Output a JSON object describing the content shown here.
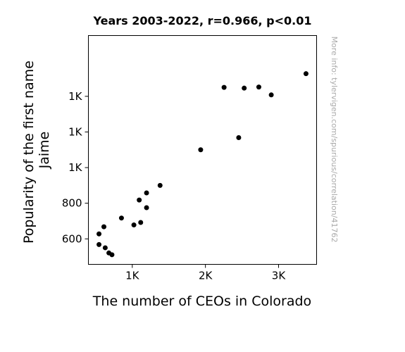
{
  "chart_data": {
    "type": "scatter",
    "title": "Years 2003-2022, r=0.966, p<0.01",
    "xlabel": "The number of CEOs in Colorado",
    "ylabel_lines": [
      "Popularity of the first name",
      "Jaime"
    ],
    "watermark": "More info: tylervigen.com/spurious/correlation/41762",
    "xlim": [
      400,
      3520
    ],
    "ylim": [
      457,
      1741
    ],
    "x_ticks": [
      {
        "value": 1000,
        "label": "1K"
      },
      {
        "value": 2000,
        "label": "2K"
      },
      {
        "value": 3000,
        "label": "3K"
      }
    ],
    "y_ticks": [
      {
        "value": 600,
        "label": "600"
      },
      {
        "value": 800,
        "label": "800"
      },
      {
        "value": 1000,
        "label": "1K"
      },
      {
        "value": 1200,
        "label": "1K"
      },
      {
        "value": 1400,
        "label": "1K"
      }
    ],
    "marker_color": "#000000",
    "points": [
      {
        "x": 545,
        "y": 628
      },
      {
        "x": 545,
        "y": 568
      },
      {
        "x": 612,
        "y": 668
      },
      {
        "x": 630,
        "y": 550
      },
      {
        "x": 680,
        "y": 521
      },
      {
        "x": 722,
        "y": 511
      },
      {
        "x": 852,
        "y": 717
      },
      {
        "x": 1022,
        "y": 678
      },
      {
        "x": 1095,
        "y": 818
      },
      {
        "x": 1115,
        "y": 692
      },
      {
        "x": 1195,
        "y": 858
      },
      {
        "x": 1195,
        "y": 775
      },
      {
        "x": 1380,
        "y": 900
      },
      {
        "x": 1935,
        "y": 1100
      },
      {
        "x": 2255,
        "y": 1450
      },
      {
        "x": 2455,
        "y": 1168
      },
      {
        "x": 2530,
        "y": 1446
      },
      {
        "x": 2730,
        "y": 1452
      },
      {
        "x": 2900,
        "y": 1408
      },
      {
        "x": 3375,
        "y": 1527
      }
    ]
  }
}
